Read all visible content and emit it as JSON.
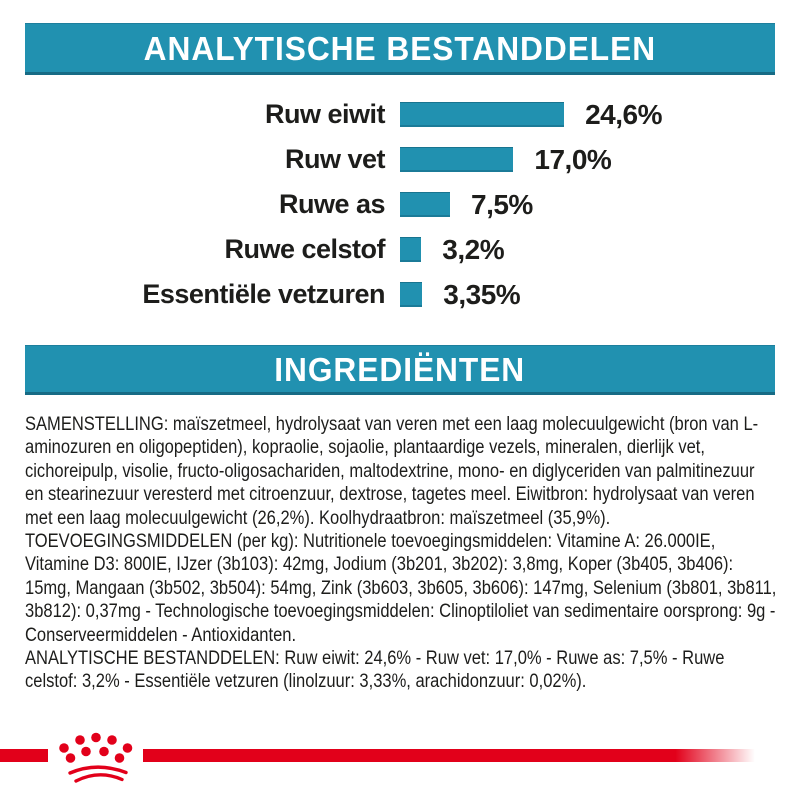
{
  "colors": {
    "teal": "#2191b0",
    "red": "#e2001a",
    "text": "#1d1d1b"
  },
  "sections": {
    "analytical_header": "ANALYTISCHE BESTANDDELEN",
    "ingredients_header": "INGREDIËNTEN"
  },
  "chart_data": {
    "type": "bar",
    "orientation": "horizontal",
    "title": "ANALYTISCHE BESTANDDELEN",
    "unit": "%",
    "categories": [
      "Ruw eiwit",
      "Ruw vet",
      "Ruwe as",
      "Ruwe celstof",
      "Essentiële vetzuren"
    ],
    "values": [
      24.6,
      17.0,
      7.5,
      3.2,
      3.35
    ],
    "value_labels": [
      "24,6%",
      "17,0%",
      "7,5%",
      "3,2%",
      "3,35%"
    ],
    "bar_color": "#2191b0",
    "axes_visible": false,
    "grid": false,
    "legend": false,
    "xlim": [
      0,
      30
    ]
  },
  "ingredients": {
    "paragraphs": [
      "SAMENSTELLING: maïszetmeel, hydrolysaat van veren met een laag molecuulgewicht (bron van L-aminozuren en oligopeptiden), kopraolie, sojaolie, plantaardige vezels, mineralen, dierlijk vet, cichoreipulp, visolie, fructo-oligosachariden, maltodextrine, mono- en diglyceriden van palmitinezuur en stearinezuur veresterd met citroenzuur, dextrose, tagetes meel. Eiwitbron: hydrolysaat van veren met een laag molecuulgewicht (26,2%). Koolhydraatbron: maïszetmeel (35,9%).",
      "TOEVOEGINGSMIDDELEN (per kg): Nutritionele toevoegingsmiddelen: Vitamine A: 26.000IE, Vitamine D3: 800IE, IJzer (3b103): 42mg, Jodium (3b201, 3b202): 3,8mg, Koper (3b405, 3b406): 15mg, Mangaan (3b502, 3b504): 54mg, Zink (3b603, 3b605, 3b606): 147mg, Selenium (3b801, 3b811, 3b812): 0,37mg - Technologische toevoegingsmiddelen: Clinoptiloliet van sedimentaire oorsprong: 9g - Conserveermiddelen - Antioxidanten.",
      "ANALYTISCHE BESTANDDELEN: Ruw eiwit: 24,6% - Ruw vet: 17,0% - Ruwe as: 7,5% - Ruwe celstof: 3,2% - Essentiële vetzuren (linolzuur: 3,33%, arachidonzuur: 0,02%)."
    ]
  },
  "footer": {
    "logo": "royal-canin-crown"
  }
}
